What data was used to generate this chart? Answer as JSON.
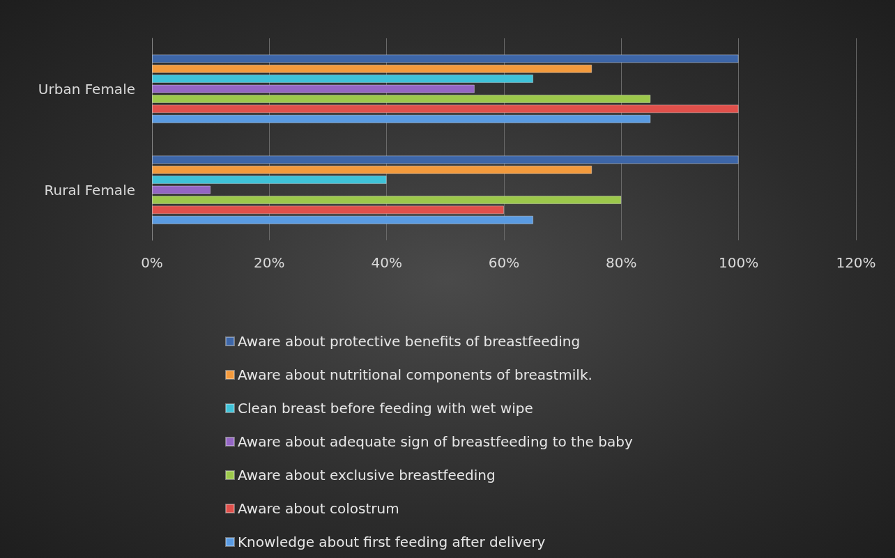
{
  "chart_data": {
    "type": "bar",
    "orientation": "horizontal",
    "categories": [
      "Urban Female",
      "Rural Female"
    ],
    "series": [
      {
        "name": "Aware about protective benefits of breastfeeding",
        "color": "#3d66a8",
        "values": [
          100,
          100
        ]
      },
      {
        "name": "Aware about nutritional components of breastmilk.",
        "color": "#f39a3c",
        "values": [
          75,
          75
        ]
      },
      {
        "name": "Clean breast before feeding with wet wipe",
        "color": "#3fc2d8",
        "values": [
          65,
          40
        ]
      },
      {
        "name": "Aware about adequate sign of breastfeeding to the baby",
        "color": "#9466c4",
        "values": [
          55,
          10
        ]
      },
      {
        "name": "Aware about exclusive breastfeeding",
        "color": "#9cc84b",
        "values": [
          85,
          80
        ]
      },
      {
        "name": "Aware about colostrum",
        "color": "#e0504b",
        "values": [
          100,
          60
        ]
      },
      {
        "name": "Knowledge about first feeding after delivery",
        "color": "#5a9be2",
        "values": [
          85,
          65
        ]
      }
    ],
    "xlim": [
      0,
      120
    ],
    "xticks": [
      {
        "value": 0,
        "label": "0%"
      },
      {
        "value": 20,
        "label": "20%"
      },
      {
        "value": 40,
        "label": "40%"
      },
      {
        "value": 60,
        "label": "60%"
      },
      {
        "value": 80,
        "label": "80%"
      },
      {
        "value": 100,
        "label": "100%"
      },
      {
        "value": 120,
        "label": "120%"
      }
    ],
    "grid": "x",
    "legend": "bottom"
  }
}
